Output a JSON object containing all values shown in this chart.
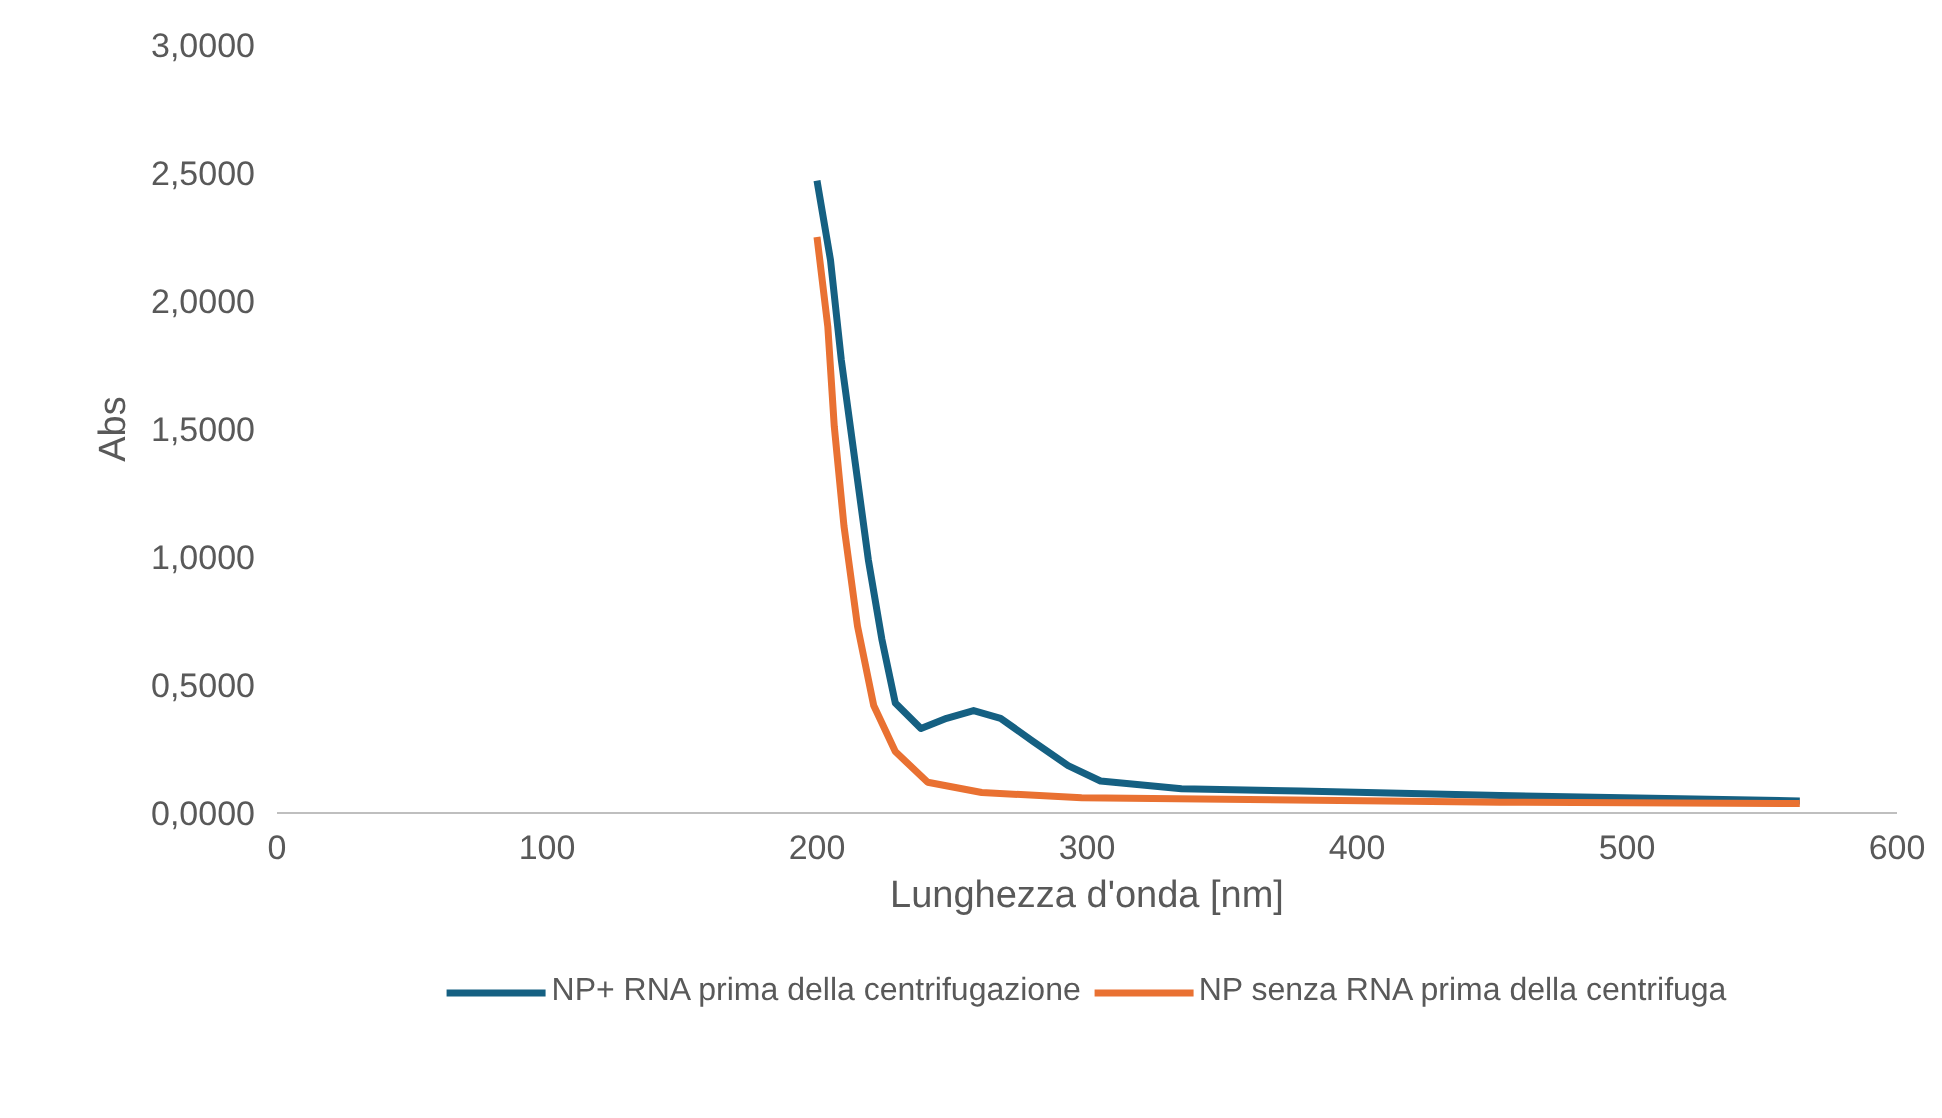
{
  "chart_data": {
    "type": "line",
    "xlabel": "Lunghezza d'onda [nm]",
    "ylabel": "Abs",
    "xlim": [
      0,
      600
    ],
    "xticks": [
      0,
      100,
      200,
      300,
      400,
      500,
      600
    ],
    "ylim": [
      0,
      3
    ],
    "yticks": [
      {
        "value": 0,
        "label": "0,0000"
      },
      {
        "value": 0.5,
        "label": "0,5000"
      },
      {
        "value": 1,
        "label": "1,0000"
      },
      {
        "value": 1.5,
        "label": "1,5000"
      },
      {
        "value": 2,
        "label": "2,0000"
      },
      {
        "value": 2.5,
        "label": "2,5000"
      },
      {
        "value": 3,
        "label": "3,0000"
      }
    ],
    "grid": false,
    "legend": "bottom",
    "marker": "none",
    "line_style": "solid",
    "series": [
      {
        "name": "NP+ RNA prima della centrifugazione",
        "color": "#156082",
        "x": [
          200,
          205,
          209,
          214,
          219,
          224,
          229,
          238.5,
          248,
          258,
          268,
          280,
          293,
          305,
          335,
          379,
          453,
          564
        ],
        "values": [
          2.47,
          2.16,
          1.77,
          1.38,
          0.99,
          0.68,
          0.43,
          0.33,
          0.37,
          0.4,
          0.37,
          0.28,
          0.185,
          0.125,
          0.095,
          0.086,
          0.068,
          0.047
        ]
      },
      {
        "name": "NP senza RNA prima della centrifuga",
        "color": "#e97132",
        "x": [
          200,
          204,
          206.4,
          210,
          215,
          221,
          229,
          241,
          261,
          298,
          453,
          564
        ],
        "values": [
          2.25,
          1.9,
          1.51,
          1.12,
          0.73,
          0.42,
          0.24,
          0.12,
          0.08,
          0.06,
          0.042,
          0.037
        ]
      }
    ]
  }
}
